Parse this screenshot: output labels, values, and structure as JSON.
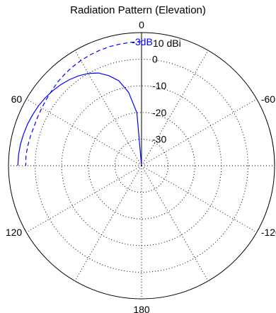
{
  "chart_data": {
    "type": "polar-line",
    "title": "Radiation Pattern (Elevation)",
    "r_unit_label": "10 dBi",
    "radial_ticks": [
      "0",
      "-10",
      "-20",
      "-30"
    ],
    "radial_range_dbi": [
      -40,
      10
    ],
    "angle_ticks": [
      "0",
      "60",
      "-60",
      "120",
      "-120",
      "180"
    ],
    "orientation": "0 at top, positive angles counterclockwise",
    "grid": true,
    "series": [
      {
        "style": "solid",
        "color": "#0000ff",
        "angle_deg": [
          0,
          5,
          10,
          15,
          20,
          25,
          30,
          35,
          40,
          45,
          50,
          55,
          60,
          65,
          70,
          75,
          80,
          85,
          90
        ],
        "gain_dbi": [
          -40,
          -20,
          -12,
          -7,
          -4,
          -1.6,
          0,
          1.2,
          2.2,
          3,
          3.7,
          4.3,
          4.8,
          5.2,
          5.6,
          5.9,
          6.2,
          6.4,
          6.5
        ]
      },
      {
        "name": "-3dB",
        "style": "dashed",
        "color": "#0000ff",
        "angle_deg": [
          0,
          5,
          10,
          15,
          20,
          25,
          30,
          35,
          40,
          45,
          50,
          55,
          60,
          65,
          70,
          75,
          80,
          85,
          90
        ],
        "gain_dbi": [
          6.6,
          6.5,
          6.4,
          6.3,
          6.1,
          5.9,
          5.6,
          5.3,
          4.9,
          4.5,
          4.0,
          3.6,
          3.3,
          3.1,
          3.0,
          3.2,
          3.4,
          3.6,
          3.5
        ]
      }
    ]
  }
}
